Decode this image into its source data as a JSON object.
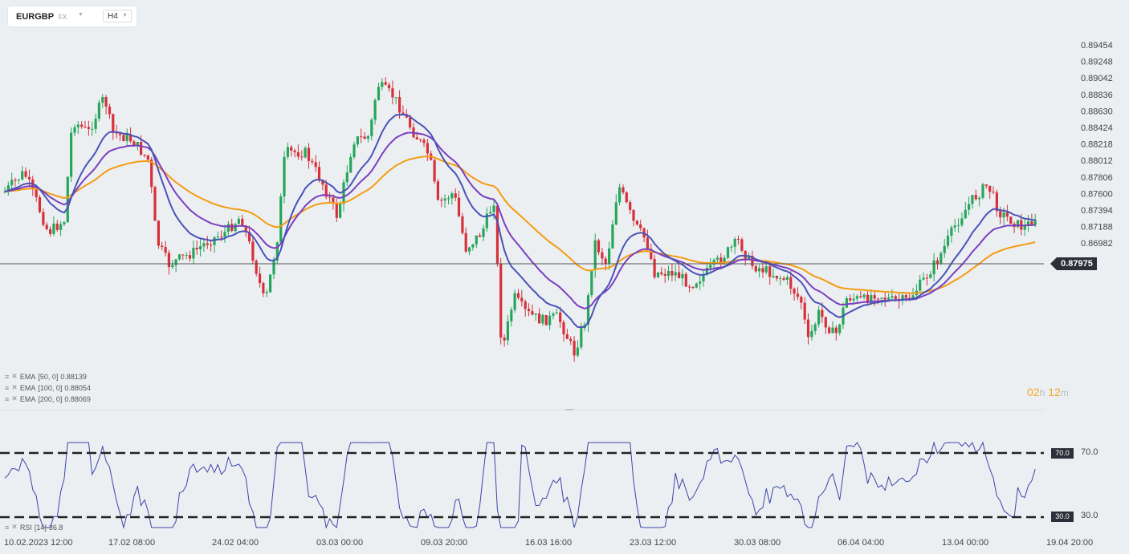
{
  "toolbar": {
    "symbol": "EURGBP",
    "market": "FX",
    "timeframe": "H4"
  },
  "price_axis": [
    "0.89454",
    "0.89248",
    "0.89042",
    "0.88836",
    "0.88630",
    "0.88424",
    "0.88218",
    "0.88012",
    "0.87806",
    "0.87600",
    "0.87394",
    "0.87188",
    "0.86982"
  ],
  "current_price": "0.87975",
  "countdown": {
    "hours": "02",
    "h": "h",
    "minutes": "12",
    "m": "m"
  },
  "legend": [
    {
      "name": "EMA",
      "params": "[50,  0]",
      "value": "0.88139"
    },
    {
      "name": "EMA",
      "params": "[100,  0]",
      "value": "0.88054"
    },
    {
      "name": "EMA",
      "params": "[200,  0]",
      "value": "0.88069"
    }
  ],
  "rsi": {
    "name": "RSI",
    "params": "[14]",
    "value": "36.8",
    "upper": "70.0",
    "lower": "30.0",
    "upper_label": "70.0",
    "lower_label": "30.0"
  },
  "time_axis": [
    "10.02.2023  12:00",
    "17.02  08:00",
    "24.02  04:00",
    "03.03  00:00",
    "09.03  20:00",
    "16.03  16:00",
    "23.03  12:00",
    "30.03  08:00",
    "06.04  04:00",
    "13.04  00:00",
    "19.04  20:00"
  ],
  "colors": {
    "up": "#26a65b",
    "down": "#d6303a",
    "ema50": "#4a52b8",
    "ema100": "#7a3fc0",
    "ema200": "#f39c12",
    "rsi": "#3b44a8"
  }
}
